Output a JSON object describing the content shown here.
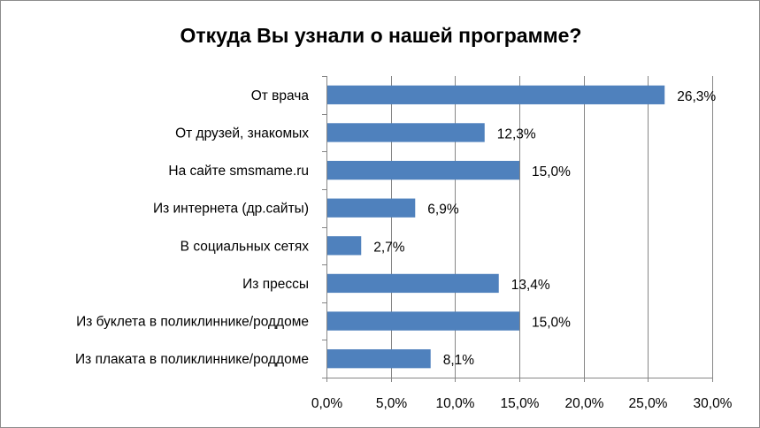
{
  "chart_data": {
    "type": "bar",
    "orientation": "horizontal",
    "title": "Откуда Вы узнали о нашей программе?",
    "categories": [
      "От врача",
      "От друзей, знакомых",
      "На сайте smsmame.ru",
      "Из интернета (др.сайты)",
      "В социальных сетях",
      "Из прессы",
      "Из буклета в поликлиннике/роддоме",
      "Из плаката в поликлиннике/роддоме"
    ],
    "values": [
      26.3,
      12.3,
      15.0,
      6.9,
      2.7,
      13.4,
      15.0,
      8.1
    ],
    "value_labels": [
      "26,3%",
      "12,3%",
      "15,0%",
      "6,9%",
      "2,7%",
      "13,4%",
      "15,0%",
      "8,1%"
    ],
    "xlim": [
      0,
      30
    ],
    "xticks": [
      0,
      5,
      10,
      15,
      20,
      25,
      30
    ],
    "xtick_labels": [
      "0,0%",
      "5,0%",
      "10,0%",
      "15,0%",
      "20,0%",
      "25,0%",
      "30,0%"
    ],
    "xlabel": "",
    "ylabel": "",
    "grid": "vertical",
    "legend": "none",
    "colors": {
      "bar": "#4f81bd",
      "grid": "#868686",
      "axis": "#868686"
    }
  }
}
